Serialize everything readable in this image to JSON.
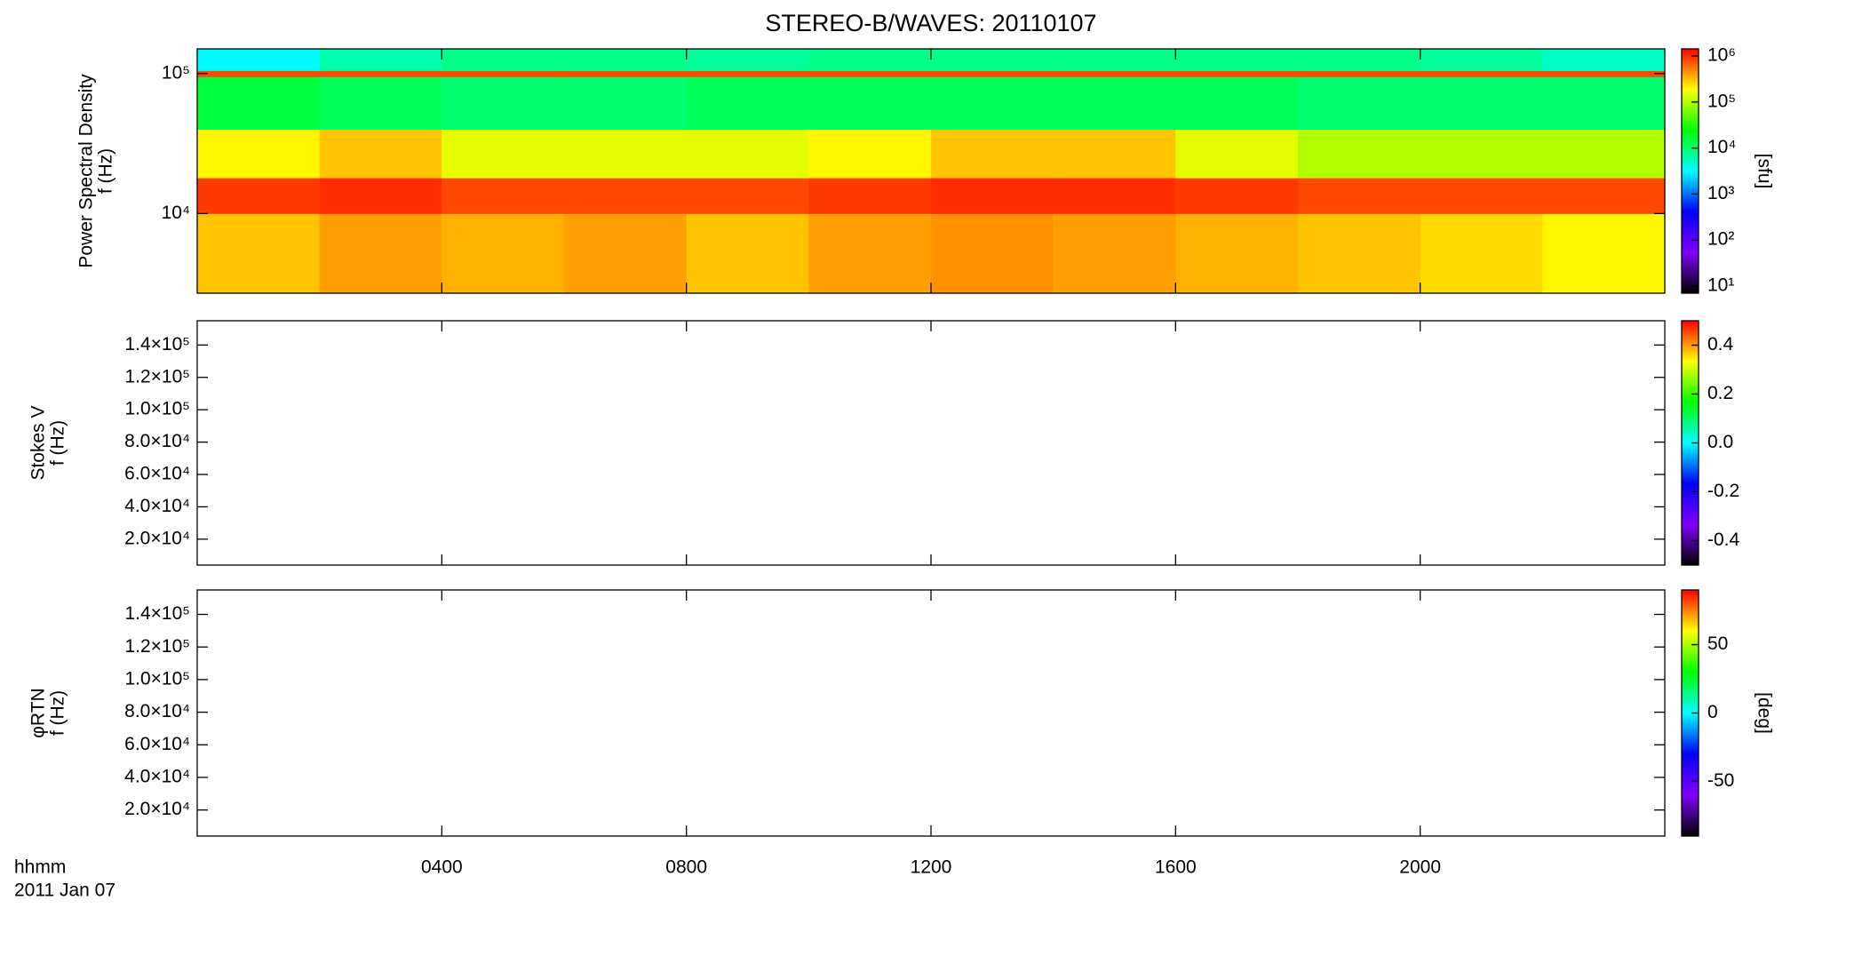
{
  "chart_data": [
    {
      "type": "heatmap",
      "title": "STEREO-B/WAVES: 20110107",
      "ylabel": [
        "Power Spectral Density",
        "f (Hz)"
      ],
      "ylog": true,
      "ylim": [
        2700,
        150000
      ],
      "yticks": [
        {
          "value": 10000,
          "label": "10⁴"
        },
        {
          "value": 100000,
          "label": "10⁵"
        }
      ],
      "x_bins": [
        0,
        200,
        400,
        600,
        800,
        1000,
        1200,
        1400,
        1600,
        1800,
        2000,
        2200,
        2400
      ],
      "y_bins": [
        2700,
        10000,
        18000,
        40000,
        95000,
        105000,
        150000
      ],
      "values": [
        [
          300000,
          400000,
          350000,
          400000,
          300000,
          400000,
          450000,
          400000,
          350000,
          300000,
          250000,
          200000
        ],
        [
          900000,
          1000000,
          800000,
          800000,
          800000,
          900000,
          1000000,
          1000000,
          900000,
          800000,
          800000,
          800000
        ],
        [
          200000,
          300000,
          150000,
          150000,
          150000,
          200000,
          300000,
          300000,
          150000,
          100000,
          100000,
          100000
        ],
        [
          15000,
          12000,
          10000,
          10000,
          12000,
          12000,
          12000,
          12000,
          12000,
          10000,
          10000,
          10000
        ],
        [
          800000,
          800000,
          800000,
          800000,
          800000,
          800000,
          800000,
          800000,
          800000,
          800000,
          800000,
          800000
        ],
        [
          3000,
          6000,
          8000,
          8000,
          7000,
          8000,
          8000,
          8000,
          8000,
          8000,
          7000,
          5000
        ]
      ],
      "colormap": [
        "#000000",
        "#7f00ff",
        "#0000ff",
        "#00ffff",
        "#00ff00",
        "#ffff00",
        "#ff0000"
      ],
      "zlog": true,
      "zlim": [
        7,
        1430000
      ],
      "zticks": [
        {
          "value": 10,
          "label": "10¹"
        },
        {
          "value": 100,
          "label": "10²"
        },
        {
          "value": 1000,
          "label": "10³"
        },
        {
          "value": 10000,
          "label": "10⁴"
        },
        {
          "value": 100000,
          "label": "10⁵"
        },
        {
          "value": 1000000,
          "label": "10⁶"
        }
      ],
      "zlabel": "[sfu]"
    },
    {
      "type": "heatmap",
      "ylabel": [
        "Stokes V",
        "f (Hz)"
      ],
      "ylim": [
        4000,
        155000
      ],
      "yticks": [
        {
          "value": 20000,
          "label": "2.0×10⁴"
        },
        {
          "value": 40000,
          "label": "4.0×10⁴"
        },
        {
          "value": 60000,
          "label": "6.0×10⁴"
        },
        {
          "value": 80000,
          "label": "8.0×10⁴"
        },
        {
          "value": 100000,
          "label": "1.0×10⁵"
        },
        {
          "value": 120000,
          "label": "1.2×10⁵"
        },
        {
          "value": 140000,
          "label": "1.4×10⁵"
        }
      ],
      "colormap": [
        "#000000",
        "#7f00ff",
        "#0000ff",
        "#00ffff",
        "#00ff00",
        "#ffff00",
        "#ff0000"
      ],
      "zlim": [
        -0.5,
        0.5
      ],
      "zticks": [
        -0.4,
        -0.2,
        {
          "value": 0,
          "label": "0.0"
        },
        0.2,
        0.4
      ]
    },
    {
      "type": "heatmap",
      "ylabel": [
        "φRTN",
        "f (Hz)"
      ],
      "ylim": [
        4000,
        155000
      ],
      "yticks": [
        {
          "value": 20000,
          "label": "2.0×10⁴"
        },
        {
          "value": 40000,
          "label": "4.0×10⁴"
        },
        {
          "value": 60000,
          "label": "6.0×10⁴"
        },
        {
          "value": 80000,
          "label": "8.0×10⁴"
        },
        {
          "value": 100000,
          "label": "1.0×10⁵"
        },
        {
          "value": 120000,
          "label": "1.2×10⁵"
        },
        {
          "value": 140000,
          "label": "1.4×10⁵"
        }
      ],
      "colormap": [
        "#000000",
        "#7f00ff",
        "#0000ff",
        "#00ffff",
        "#00ff00",
        "#ffff00",
        "#ff0000"
      ],
      "zlim": [
        -90,
        90
      ],
      "zticks": [
        -50,
        0,
        50
      ],
      "zlabel": "[deg]",
      "xlim": [
        0,
        2400
      ],
      "xticks": [
        {
          "value": 400,
          "label": "0400"
        },
        {
          "value": 800,
          "label": "0800"
        },
        {
          "value": 1200,
          "label": "1200"
        },
        {
          "value": 1600,
          "label": "1600"
        },
        {
          "value": 2000,
          "label": "2000"
        }
      ],
      "xlabel": [
        "hhmm",
        "2011 Jan 07"
      ]
    }
  ]
}
